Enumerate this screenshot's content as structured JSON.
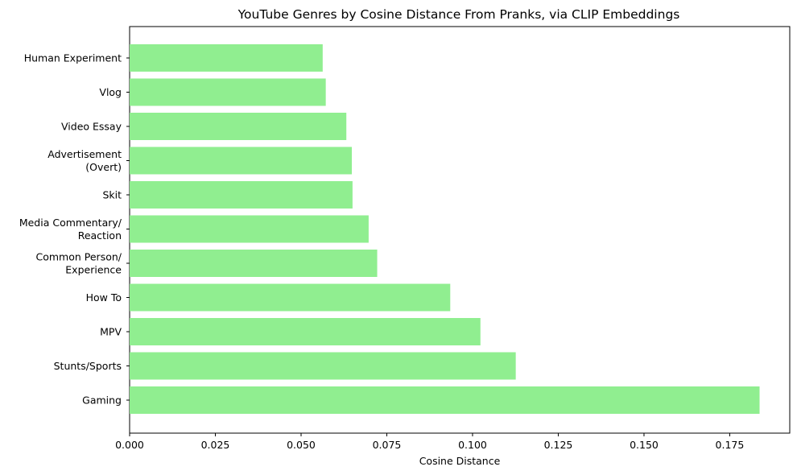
{
  "chart_data": {
    "type": "bar",
    "orientation": "horizontal",
    "title": "YouTube Genres by Cosine Distance From Pranks, via CLIP Embeddings",
    "xlabel": "Cosine Distance",
    "ylabel": "",
    "categories": [
      "Human Experiment",
      "Vlog",
      "Video Essay",
      "Advertisement\n(Overt)",
      "Skit",
      "Media Commentary/\nReaction",
      "Common Person/\nExperience",
      "How To",
      "MPV",
      "Stunts/Sports",
      "Gaming"
    ],
    "values": [
      0.0563,
      0.0572,
      0.0632,
      0.0648,
      0.065,
      0.0697,
      0.0722,
      0.0935,
      0.1023,
      0.1126,
      0.1837
    ],
    "xlim": [
      0,
      0.1925
    ],
    "xticks": [
      "0.000",
      "0.025",
      "0.050",
      "0.075",
      "0.100",
      "0.125",
      "0.150",
      "0.175"
    ],
    "bar_color": "#90ee90",
    "grid": false
  }
}
